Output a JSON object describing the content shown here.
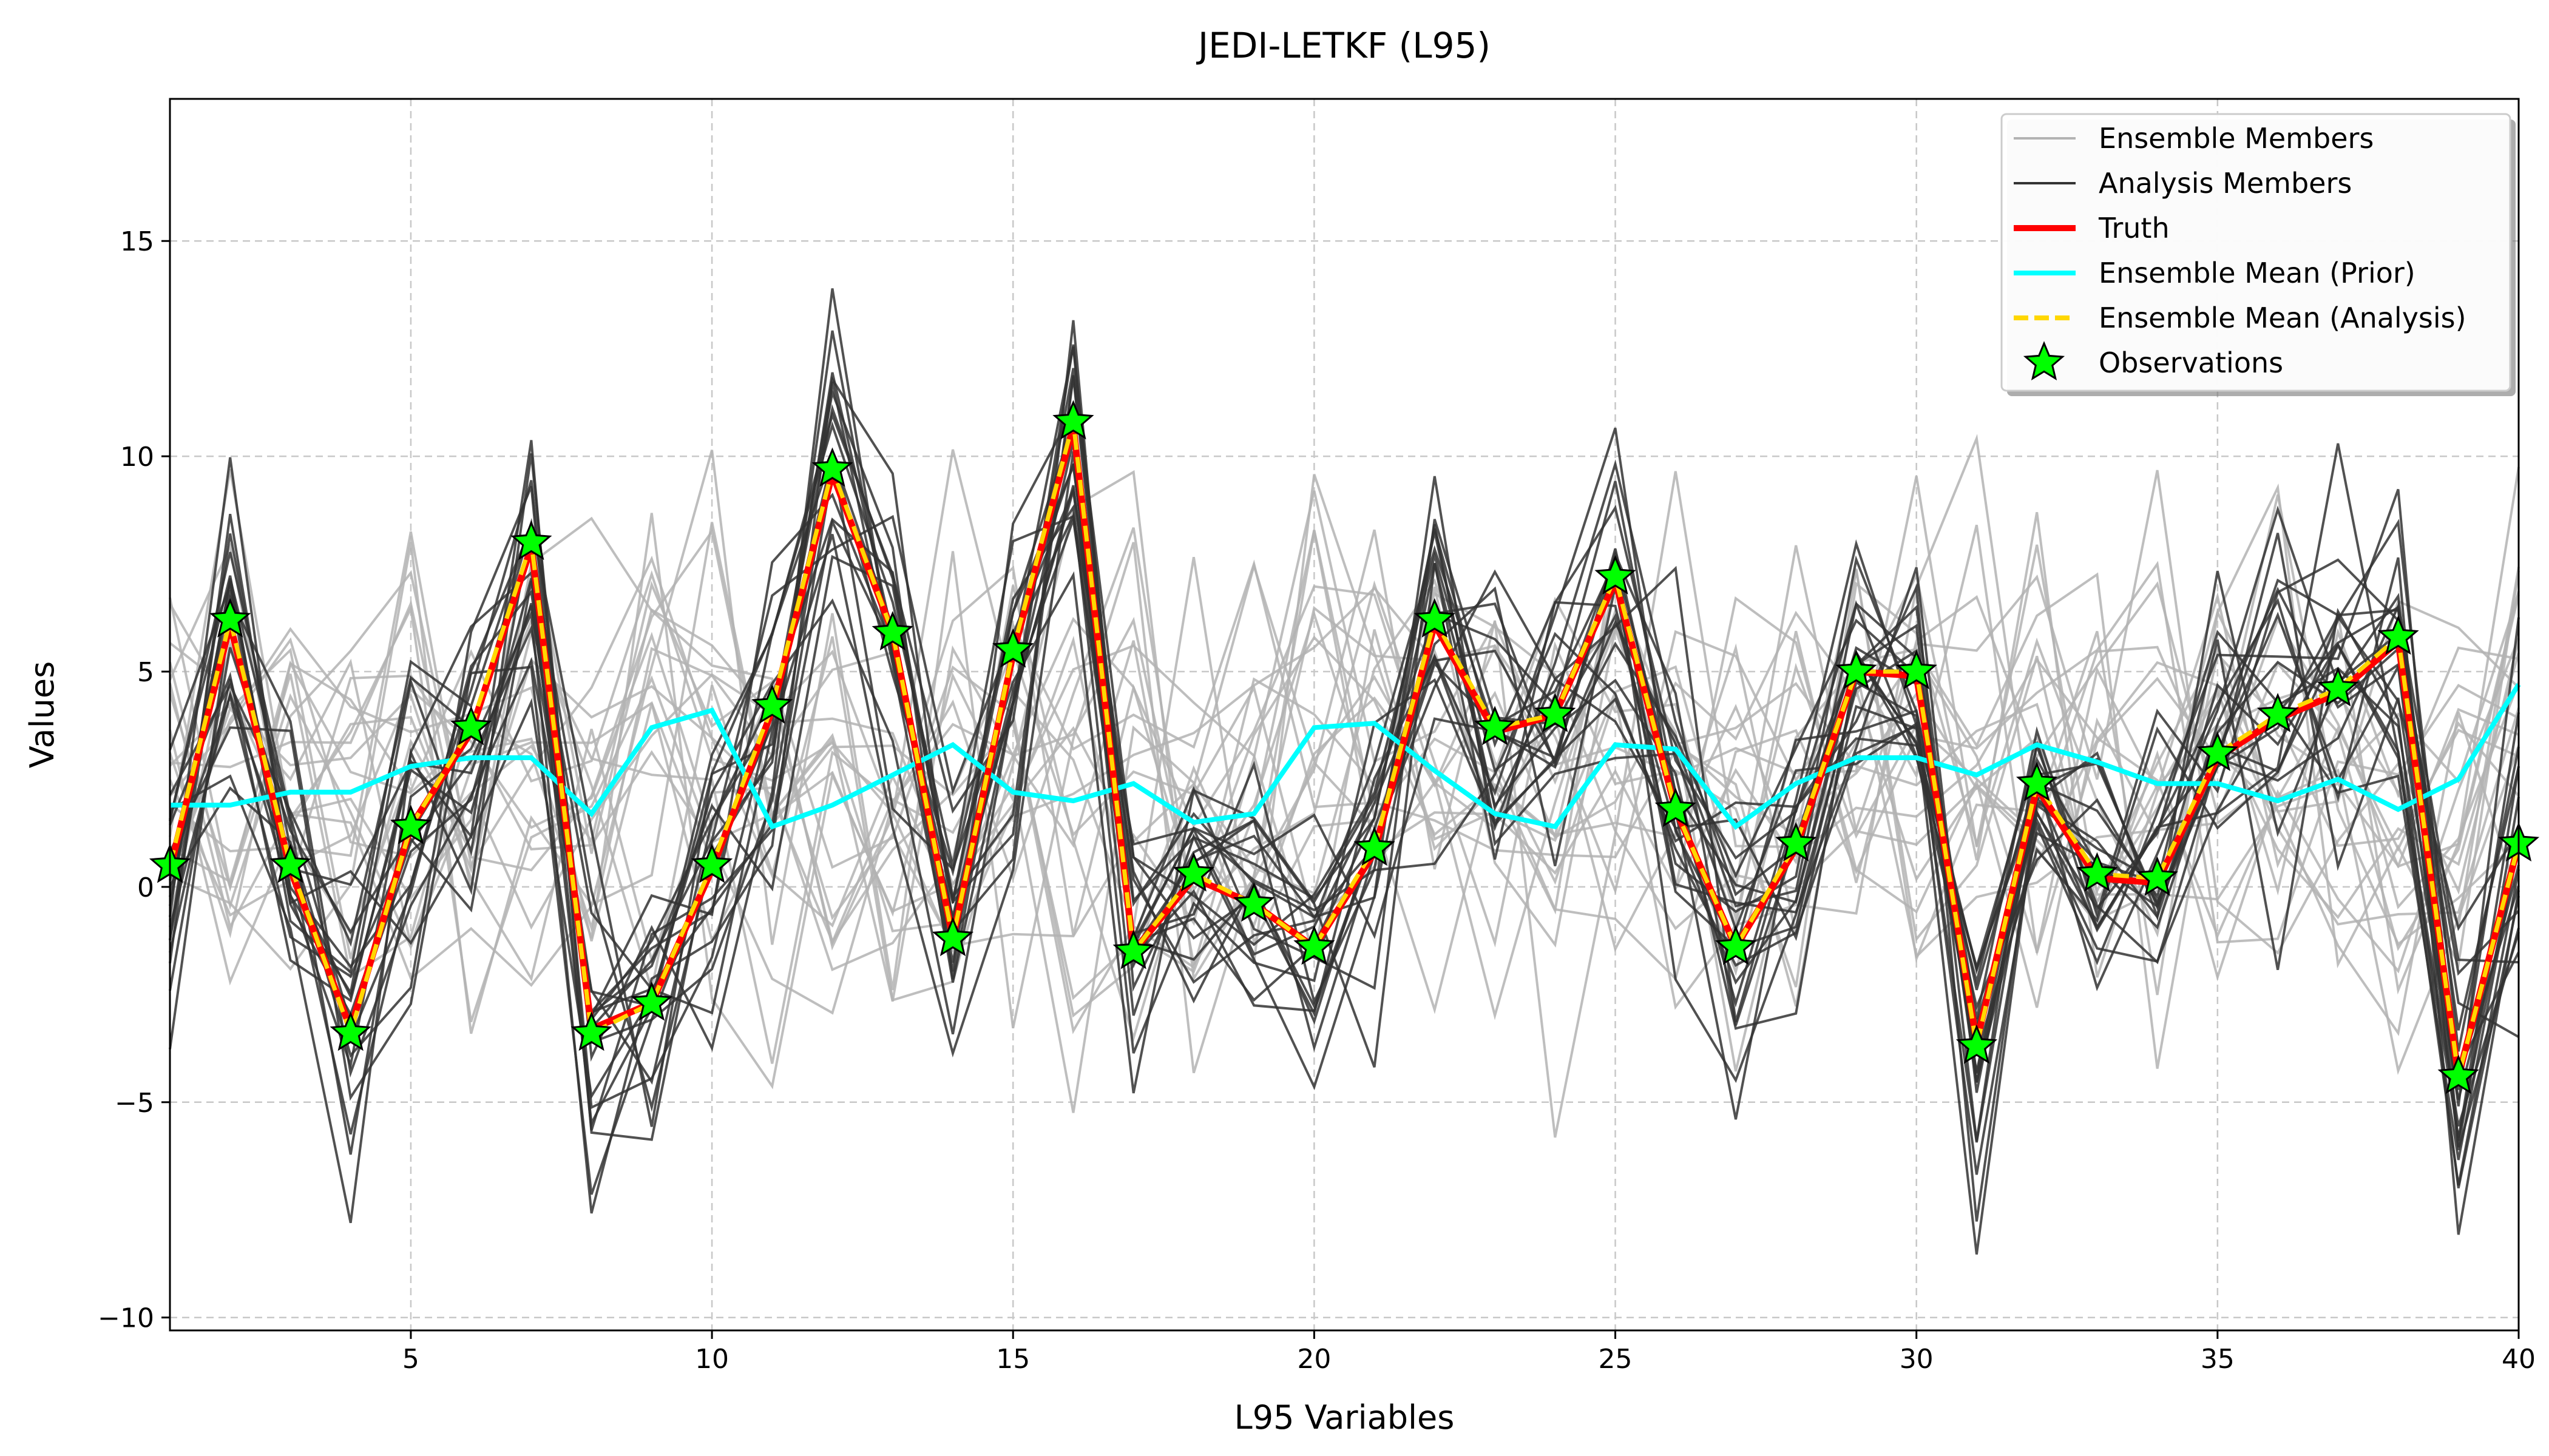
{
  "chart_data": {
    "type": "line",
    "title": "JEDI-LETKF (L95)",
    "xlabel": "L95 Variables",
    "ylabel": "Values",
    "xlim": [
      1,
      40
    ],
    "ylim": [
      -10.3,
      18.3
    ],
    "x_ticks": [
      5,
      10,
      15,
      20,
      25,
      30,
      35,
      40
    ],
    "y_ticks": [
      -10,
      -5,
      0,
      5,
      10,
      15
    ],
    "grid": true,
    "legend_position": "top-right",
    "legend": [
      {
        "label": "Ensemble Members",
        "style": "line",
        "color": "#b3b3b3"
      },
      {
        "label": "Analysis Members",
        "style": "line",
        "color": "#333333"
      },
      {
        "label": "Truth",
        "style": "line",
        "color": "#ff0000"
      },
      {
        "label": "Ensemble Mean (Prior)",
        "style": "line",
        "color": "#00ffff"
      },
      {
        "label": "Ensemble Mean (Analysis)",
        "style": "dashed",
        "color": "#ffd700"
      },
      {
        "label": "Observations",
        "style": "star",
        "color": "#00ff00"
      }
    ],
    "x": [
      1,
      2,
      3,
      4,
      5,
      6,
      7,
      8,
      9,
      10,
      11,
      12,
      13,
      14,
      15,
      16,
      17,
      18,
      19,
      20,
      21,
      22,
      23,
      24,
      25,
      26,
      27,
      28,
      29,
      30,
      31,
      32,
      33,
      34,
      35,
      36,
      37,
      38,
      39,
      40
    ],
    "truth": [
      0.4,
      6.1,
      0.4,
      -3.3,
      1.4,
      3.6,
      7.9,
      -3.3,
      -2.7,
      0.4,
      4.1,
      9.6,
      5.9,
      -1.2,
      5.4,
      10.7,
      -1.5,
      0.2,
      -0.4,
      -1.4,
      0.8,
      6.1,
      3.6,
      4.0,
      7.1,
      1.8,
      -1.4,
      0.9,
      5.0,
      4.9,
      -3.6,
      2.3,
      0.2,
      0.1,
      3.0,
      3.9,
      4.5,
      5.7,
      -4.4,
      1.0
    ],
    "analysis_mean": [
      0.5,
      6.2,
      0.5,
      -3.4,
      1.4,
      3.7,
      8.0,
      -3.4,
      -2.7,
      0.5,
      4.2,
      9.7,
      5.9,
      -1.2,
      5.5,
      10.8,
      -1.5,
      0.3,
      -0.4,
      -1.4,
      0.9,
      6.2,
      3.7,
      4.0,
      7.2,
      1.8,
      -1.4,
      1.0,
      5.0,
      5.0,
      -3.7,
      2.4,
      0.3,
      0.2,
      3.1,
      4.0,
      4.6,
      5.8,
      -4.4,
      1.0
    ],
    "prior_mean": [
      1.9,
      1.9,
      2.2,
      2.2,
      2.8,
      3.0,
      3.0,
      1.7,
      3.7,
      4.1,
      1.4,
      1.9,
      2.6,
      3.3,
      2.2,
      2.0,
      2.4,
      1.5,
      1.7,
      3.7,
      3.8,
      2.7,
      1.7,
      1.4,
      3.3,
      3.2,
      1.4,
      2.4,
      3.0,
      3.0,
      2.6,
      3.3,
      2.9,
      2.4,
      2.4,
      2.0,
      2.5,
      1.8,
      2.5,
      4.7
    ],
    "observations": [
      0.5,
      6.2,
      0.5,
      -3.4,
      1.4,
      3.7,
      8.0,
      -3.4,
      -2.7,
      0.5,
      4.2,
      9.7,
      5.9,
      -1.2,
      5.5,
      10.8,
      -1.5,
      0.3,
      -0.4,
      -1.4,
      0.9,
      6.2,
      3.7,
      4.0,
      7.2,
      1.8,
      -1.4,
      1.0,
      5.0,
      5.0,
      -3.7,
      2.4,
      0.3,
      0.2,
      3.1,
      4.0,
      4.6,
      5.8,
      -4.4,
      1.0
    ],
    "ensemble_member_count": 20,
    "analysis_member_count": 20,
    "ensemble_spread": 4.0,
    "analysis_spread": 2.6,
    "colors": {
      "ensemble": "#b3b3b3",
      "analysis": "#333333",
      "truth": "#ff0000",
      "prior": "#00ffff",
      "analysis_mean": "#ffd700",
      "observations": "#00ff00",
      "grid": "#c8c8c8"
    }
  }
}
